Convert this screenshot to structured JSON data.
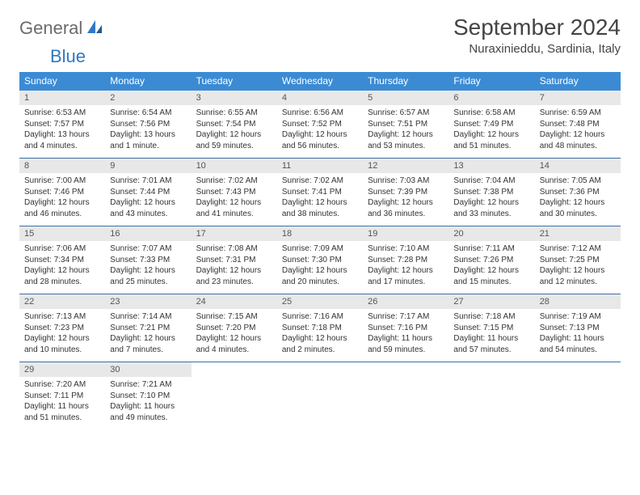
{
  "brand": {
    "part1": "General",
    "part2": "Blue"
  },
  "title": "September 2024",
  "location": "Nuraxinieddu, Sardinia, Italy",
  "colors": {
    "header_bg": "#3b8bd4",
    "header_text": "#ffffff",
    "daynum_bg": "#e8e8e8",
    "week_divider": "#3b6fa8",
    "brand_gray": "#6b6b6b",
    "brand_blue": "#2f78c4"
  },
  "typography": {
    "title_fontsize": 28,
    "location_fontsize": 15,
    "dow_fontsize": 12,
    "daynum_fontsize": 11,
    "body_fontsize": 10
  },
  "daysOfWeek": [
    "Sunday",
    "Monday",
    "Tuesday",
    "Wednesday",
    "Thursday",
    "Friday",
    "Saturday"
  ],
  "weeks": [
    [
      {
        "num": "1",
        "sunrise": "Sunrise: 6:53 AM",
        "sunset": "Sunset: 7:57 PM",
        "daylight": "Daylight: 13 hours and 4 minutes."
      },
      {
        "num": "2",
        "sunrise": "Sunrise: 6:54 AM",
        "sunset": "Sunset: 7:56 PM",
        "daylight": "Daylight: 13 hours and 1 minute."
      },
      {
        "num": "3",
        "sunrise": "Sunrise: 6:55 AM",
        "sunset": "Sunset: 7:54 PM",
        "daylight": "Daylight: 12 hours and 59 minutes."
      },
      {
        "num": "4",
        "sunrise": "Sunrise: 6:56 AM",
        "sunset": "Sunset: 7:52 PM",
        "daylight": "Daylight: 12 hours and 56 minutes."
      },
      {
        "num": "5",
        "sunrise": "Sunrise: 6:57 AM",
        "sunset": "Sunset: 7:51 PM",
        "daylight": "Daylight: 12 hours and 53 minutes."
      },
      {
        "num": "6",
        "sunrise": "Sunrise: 6:58 AM",
        "sunset": "Sunset: 7:49 PM",
        "daylight": "Daylight: 12 hours and 51 minutes."
      },
      {
        "num": "7",
        "sunrise": "Sunrise: 6:59 AM",
        "sunset": "Sunset: 7:48 PM",
        "daylight": "Daylight: 12 hours and 48 minutes."
      }
    ],
    [
      {
        "num": "8",
        "sunrise": "Sunrise: 7:00 AM",
        "sunset": "Sunset: 7:46 PM",
        "daylight": "Daylight: 12 hours and 46 minutes."
      },
      {
        "num": "9",
        "sunrise": "Sunrise: 7:01 AM",
        "sunset": "Sunset: 7:44 PM",
        "daylight": "Daylight: 12 hours and 43 minutes."
      },
      {
        "num": "10",
        "sunrise": "Sunrise: 7:02 AM",
        "sunset": "Sunset: 7:43 PM",
        "daylight": "Daylight: 12 hours and 41 minutes."
      },
      {
        "num": "11",
        "sunrise": "Sunrise: 7:02 AM",
        "sunset": "Sunset: 7:41 PM",
        "daylight": "Daylight: 12 hours and 38 minutes."
      },
      {
        "num": "12",
        "sunrise": "Sunrise: 7:03 AM",
        "sunset": "Sunset: 7:39 PM",
        "daylight": "Daylight: 12 hours and 36 minutes."
      },
      {
        "num": "13",
        "sunrise": "Sunrise: 7:04 AM",
        "sunset": "Sunset: 7:38 PM",
        "daylight": "Daylight: 12 hours and 33 minutes."
      },
      {
        "num": "14",
        "sunrise": "Sunrise: 7:05 AM",
        "sunset": "Sunset: 7:36 PM",
        "daylight": "Daylight: 12 hours and 30 minutes."
      }
    ],
    [
      {
        "num": "15",
        "sunrise": "Sunrise: 7:06 AM",
        "sunset": "Sunset: 7:34 PM",
        "daylight": "Daylight: 12 hours and 28 minutes."
      },
      {
        "num": "16",
        "sunrise": "Sunrise: 7:07 AM",
        "sunset": "Sunset: 7:33 PM",
        "daylight": "Daylight: 12 hours and 25 minutes."
      },
      {
        "num": "17",
        "sunrise": "Sunrise: 7:08 AM",
        "sunset": "Sunset: 7:31 PM",
        "daylight": "Daylight: 12 hours and 23 minutes."
      },
      {
        "num": "18",
        "sunrise": "Sunrise: 7:09 AM",
        "sunset": "Sunset: 7:30 PM",
        "daylight": "Daylight: 12 hours and 20 minutes."
      },
      {
        "num": "19",
        "sunrise": "Sunrise: 7:10 AM",
        "sunset": "Sunset: 7:28 PM",
        "daylight": "Daylight: 12 hours and 17 minutes."
      },
      {
        "num": "20",
        "sunrise": "Sunrise: 7:11 AM",
        "sunset": "Sunset: 7:26 PM",
        "daylight": "Daylight: 12 hours and 15 minutes."
      },
      {
        "num": "21",
        "sunrise": "Sunrise: 7:12 AM",
        "sunset": "Sunset: 7:25 PM",
        "daylight": "Daylight: 12 hours and 12 minutes."
      }
    ],
    [
      {
        "num": "22",
        "sunrise": "Sunrise: 7:13 AM",
        "sunset": "Sunset: 7:23 PM",
        "daylight": "Daylight: 12 hours and 10 minutes."
      },
      {
        "num": "23",
        "sunrise": "Sunrise: 7:14 AM",
        "sunset": "Sunset: 7:21 PM",
        "daylight": "Daylight: 12 hours and 7 minutes."
      },
      {
        "num": "24",
        "sunrise": "Sunrise: 7:15 AM",
        "sunset": "Sunset: 7:20 PM",
        "daylight": "Daylight: 12 hours and 4 minutes."
      },
      {
        "num": "25",
        "sunrise": "Sunrise: 7:16 AM",
        "sunset": "Sunset: 7:18 PM",
        "daylight": "Daylight: 12 hours and 2 minutes."
      },
      {
        "num": "26",
        "sunrise": "Sunrise: 7:17 AM",
        "sunset": "Sunset: 7:16 PM",
        "daylight": "Daylight: 11 hours and 59 minutes."
      },
      {
        "num": "27",
        "sunrise": "Sunrise: 7:18 AM",
        "sunset": "Sunset: 7:15 PM",
        "daylight": "Daylight: 11 hours and 57 minutes."
      },
      {
        "num": "28",
        "sunrise": "Sunrise: 7:19 AM",
        "sunset": "Sunset: 7:13 PM",
        "daylight": "Daylight: 11 hours and 54 minutes."
      }
    ],
    [
      {
        "num": "29",
        "sunrise": "Sunrise: 7:20 AM",
        "sunset": "Sunset: 7:11 PM",
        "daylight": "Daylight: 11 hours and 51 minutes."
      },
      {
        "num": "30",
        "sunrise": "Sunrise: 7:21 AM",
        "sunset": "Sunset: 7:10 PM",
        "daylight": "Daylight: 11 hours and 49 minutes."
      },
      null,
      null,
      null,
      null,
      null
    ]
  ]
}
